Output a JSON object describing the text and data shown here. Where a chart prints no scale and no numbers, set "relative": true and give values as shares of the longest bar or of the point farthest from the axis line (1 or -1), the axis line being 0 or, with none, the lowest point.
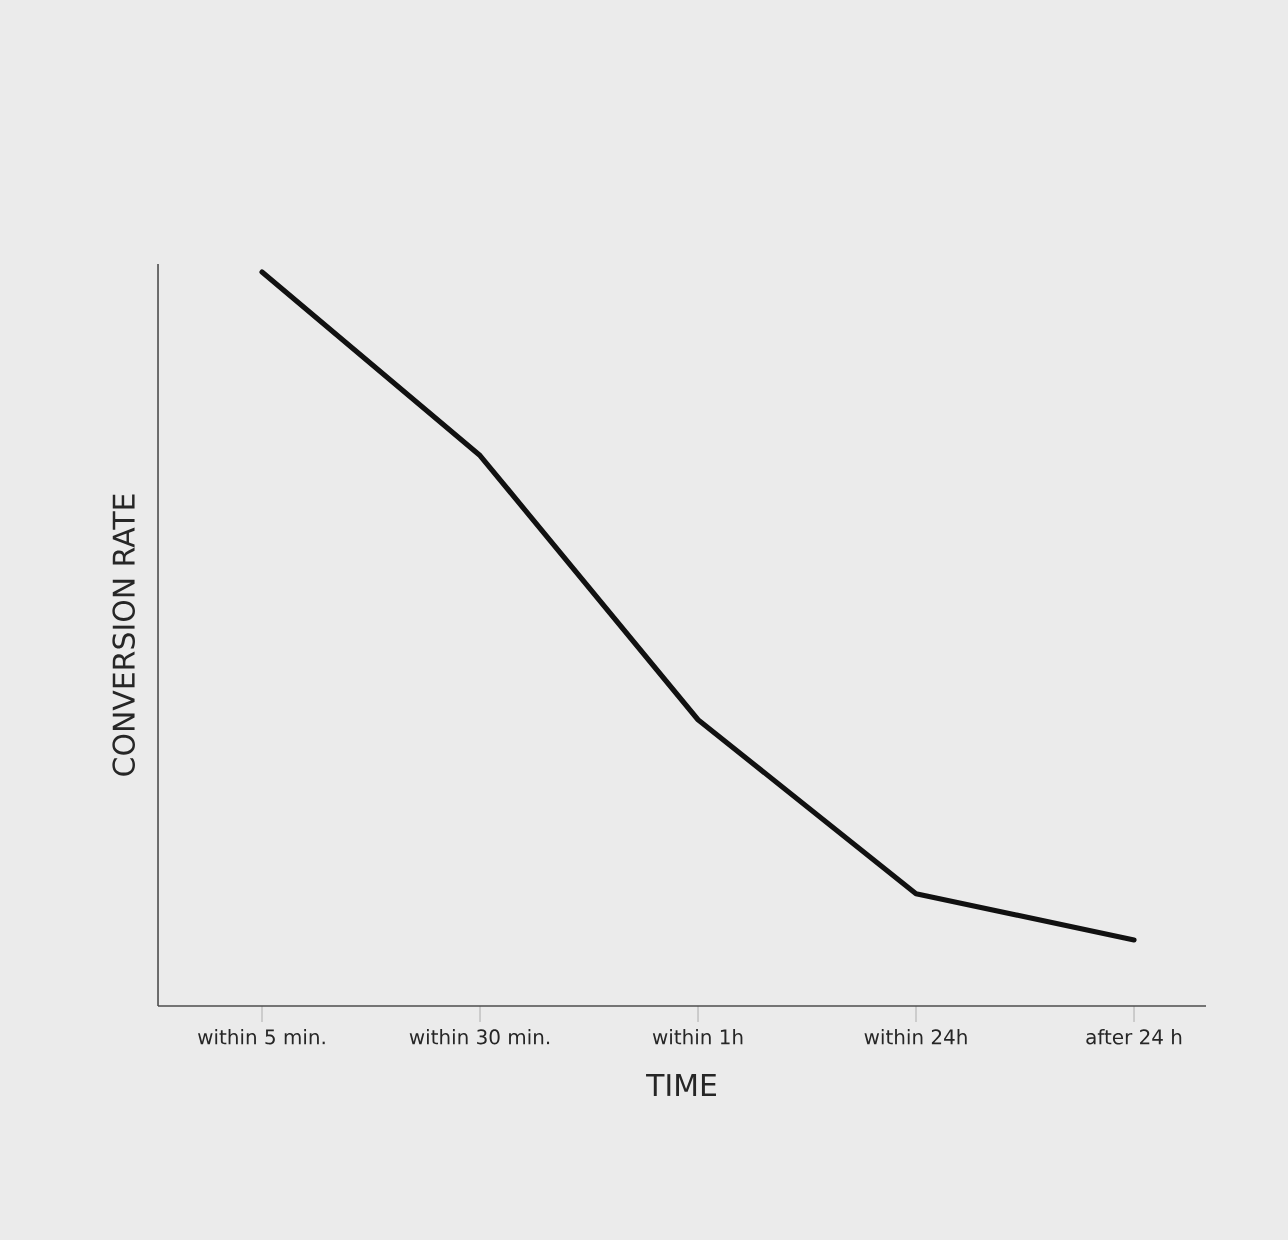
{
  "chart_data": {
    "type": "line",
    "relative": true,
    "xlabel": "TIME",
    "ylabel": "CONVERSION RATE",
    "color": "#111111",
    "categories": [
      "within 5 min.",
      "within 30 min.",
      "within 1h",
      "within 24h",
      "after 24 h"
    ],
    "values": [
      1.0,
      0.75,
      0.39,
      0.153,
      0.09
    ]
  }
}
